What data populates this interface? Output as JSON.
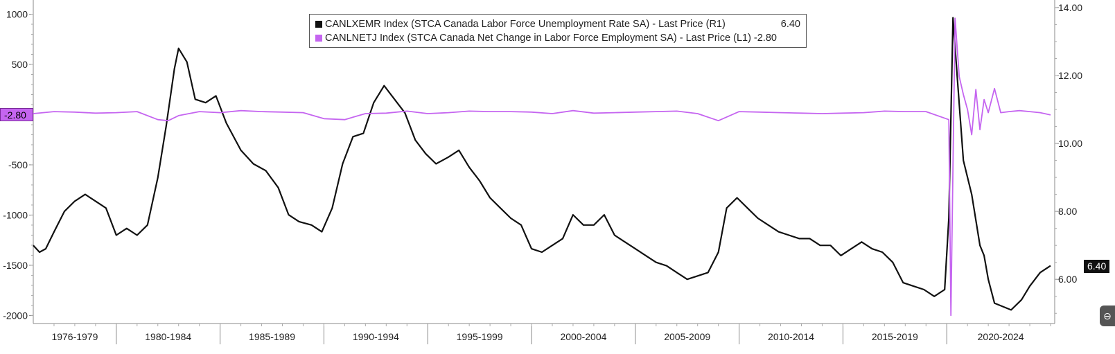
{
  "legend": {
    "unemployment": {
      "label": "CANLXEMR Index (STCA Canada Labor Force Unemployment Rate SA) - Last Price (R1)",
      "value": "6.40",
      "color": "#111111"
    },
    "employment": {
      "label": "CANLNETJ Index (STCA Canada Net Change in Labor Force Employment SA) - Last Price (L1)",
      "value": "-2.80",
      "color": "#c565f0"
    }
  },
  "tags": {
    "left": "-2.80",
    "right": "6.40"
  },
  "icons": {
    "corner": "collapse-icon"
  },
  "chart_data": {
    "type": "line",
    "grid": false,
    "legend_position": "top-center",
    "x_periods": [
      "1976-1979",
      "1980-1984",
      "1985-1989",
      "1990-1994",
      "1995-1999",
      "2000-2004",
      "2005-2009",
      "2010-2014",
      "2015-2019",
      "2020-2024"
    ],
    "x_range": [
      1976.0,
      2025.2
    ],
    "left_axis": {
      "ticks": [
        "1000",
        "500",
        "-500",
        "-1000",
        "-1500",
        "-2000"
      ],
      "tick_values": [
        1000,
        500,
        -500,
        -1000,
        -1500,
        -2000
      ],
      "range": [
        -2080,
        1100
      ]
    },
    "right_axis": {
      "ticks": [
        "14.00",
        "12.00",
        "10.00",
        "8.00",
        "6.00"
      ],
      "tick_values": [
        14,
        12,
        10,
        8,
        6
      ],
      "range": [
        4.7,
        14.1
      ]
    },
    "series": [
      {
        "name": "CANLXEMR Index (STCA Canada Labor Force Unemployment Rate SA) - Last Price (R1)",
        "axis": "right",
        "color": "#111111",
        "points": [
          [
            1976.0,
            7.0
          ],
          [
            1976.3,
            6.8
          ],
          [
            1976.6,
            6.9
          ],
          [
            1977.0,
            7.4
          ],
          [
            1977.5,
            8.0
          ],
          [
            1978.0,
            8.3
          ],
          [
            1978.5,
            8.5
          ],
          [
            1979.0,
            8.3
          ],
          [
            1979.5,
            8.1
          ],
          [
            1980.0,
            7.3
          ],
          [
            1980.5,
            7.5
          ],
          [
            1981.0,
            7.3
          ],
          [
            1981.5,
            7.6
          ],
          [
            1982.0,
            9.0
          ],
          [
            1982.4,
            10.5
          ],
          [
            1982.8,
            12.2
          ],
          [
            1983.0,
            12.8
          ],
          [
            1983.4,
            12.4
          ],
          [
            1983.8,
            11.3
          ],
          [
            1984.3,
            11.2
          ],
          [
            1984.8,
            11.4
          ],
          [
            1985.3,
            10.6
          ],
          [
            1986.0,
            9.8
          ],
          [
            1986.6,
            9.4
          ],
          [
            1987.2,
            9.2
          ],
          [
            1987.8,
            8.7
          ],
          [
            1988.3,
            7.9
          ],
          [
            1988.8,
            7.7
          ],
          [
            1989.4,
            7.6
          ],
          [
            1989.9,
            7.4
          ],
          [
            1990.4,
            8.1
          ],
          [
            1990.9,
            9.4
          ],
          [
            1991.4,
            10.2
          ],
          [
            1991.9,
            10.3
          ],
          [
            1992.4,
            11.2
          ],
          [
            1992.9,
            11.7
          ],
          [
            1993.4,
            11.3
          ],
          [
            1993.9,
            10.9
          ],
          [
            1994.4,
            10.1
          ],
          [
            1994.9,
            9.7
          ],
          [
            1995.4,
            9.4
          ],
          [
            1996.0,
            9.6
          ],
          [
            1996.5,
            9.8
          ],
          [
            1997.0,
            9.3
          ],
          [
            1997.5,
            8.9
          ],
          [
            1998.0,
            8.4
          ],
          [
            1998.5,
            8.1
          ],
          [
            1999.0,
            7.8
          ],
          [
            1999.5,
            7.6
          ],
          [
            2000.0,
            6.9
          ],
          [
            2000.5,
            6.8
          ],
          [
            2001.0,
            7.0
          ],
          [
            2001.5,
            7.2
          ],
          [
            2002.0,
            7.9
          ],
          [
            2002.5,
            7.6
          ],
          [
            2003.0,
            7.6
          ],
          [
            2003.5,
            7.9
          ],
          [
            2004.0,
            7.3
          ],
          [
            2004.5,
            7.1
          ],
          [
            2005.0,
            6.9
          ],
          [
            2005.5,
            6.7
          ],
          [
            2006.0,
            6.5
          ],
          [
            2006.5,
            6.4
          ],
          [
            2007.0,
            6.2
          ],
          [
            2007.5,
            6.0
          ],
          [
            2008.0,
            6.1
          ],
          [
            2008.5,
            6.2
          ],
          [
            2009.0,
            6.8
          ],
          [
            2009.4,
            8.1
          ],
          [
            2009.9,
            8.4
          ],
          [
            2010.4,
            8.1
          ],
          [
            2010.9,
            7.8
          ],
          [
            2011.4,
            7.6
          ],
          [
            2011.9,
            7.4
          ],
          [
            2012.4,
            7.3
          ],
          [
            2012.9,
            7.2
          ],
          [
            2013.4,
            7.2
          ],
          [
            2013.9,
            7.0
          ],
          [
            2014.4,
            7.0
          ],
          [
            2014.9,
            6.7
          ],
          [
            2015.4,
            6.9
          ],
          [
            2015.9,
            7.1
          ],
          [
            2016.4,
            6.9
          ],
          [
            2016.9,
            6.8
          ],
          [
            2017.4,
            6.5
          ],
          [
            2017.9,
            5.9
          ],
          [
            2018.4,
            5.8
          ],
          [
            2018.9,
            5.7
          ],
          [
            2019.4,
            5.5
          ],
          [
            2019.9,
            5.7
          ],
          [
            2020.1,
            7.8
          ],
          [
            2020.3,
            13.7
          ],
          [
            2020.5,
            12.0
          ],
          [
            2020.8,
            9.5
          ],
          [
            2021.2,
            8.5
          ],
          [
            2021.6,
            7.0
          ],
          [
            2021.8,
            6.7
          ],
          [
            2022.0,
            6.0
          ],
          [
            2022.3,
            5.3
          ],
          [
            2022.7,
            5.2
          ],
          [
            2023.1,
            5.1
          ],
          [
            2023.6,
            5.4
          ],
          [
            2024.0,
            5.8
          ],
          [
            2024.5,
            6.2
          ],
          [
            2025.0,
            6.4
          ]
        ]
      },
      {
        "name": "CANLNETJ Index (STCA Canada Net Change in Labor Force Employment SA) - Last Price (L1)",
        "axis": "left",
        "color": "#c565f0",
        "points": [
          [
            1976.0,
            10
          ],
          [
            1977.0,
            30
          ],
          [
            1978.0,
            25
          ],
          [
            1979.0,
            15
          ],
          [
            1980.0,
            20
          ],
          [
            1981.0,
            30
          ],
          [
            1982.0,
            -50
          ],
          [
            1982.5,
            -60
          ],
          [
            1983.0,
            -10
          ],
          [
            1984.0,
            30
          ],
          [
            1985.0,
            20
          ],
          [
            1986.0,
            40
          ],
          [
            1987.0,
            30
          ],
          [
            1988.0,
            25
          ],
          [
            1989.0,
            20
          ],
          [
            1990.0,
            -40
          ],
          [
            1991.0,
            -50
          ],
          [
            1992.0,
            10
          ],
          [
            1993.0,
            15
          ],
          [
            1994.0,
            35
          ],
          [
            1995.0,
            10
          ],
          [
            1996.0,
            20
          ],
          [
            1997.0,
            35
          ],
          [
            1998.0,
            30
          ],
          [
            1999.0,
            30
          ],
          [
            2000.0,
            25
          ],
          [
            2001.0,
            10
          ],
          [
            2002.0,
            40
          ],
          [
            2003.0,
            15
          ],
          [
            2004.0,
            20
          ],
          [
            2005.0,
            25
          ],
          [
            2006.0,
            30
          ],
          [
            2007.0,
            35
          ],
          [
            2008.0,
            10
          ],
          [
            2009.0,
            -60
          ],
          [
            2010.0,
            30
          ],
          [
            2011.0,
            25
          ],
          [
            2012.0,
            20
          ],
          [
            2013.0,
            15
          ],
          [
            2014.0,
            10
          ],
          [
            2015.0,
            15
          ],
          [
            2016.0,
            20
          ],
          [
            2017.0,
            35
          ],
          [
            2018.0,
            30
          ],
          [
            2019.0,
            30
          ],
          [
            2020.1,
            -50
          ],
          [
            2020.2,
            -2000
          ],
          [
            2020.4,
            960
          ],
          [
            2020.6,
            380
          ],
          [
            2020.8,
            200
          ],
          [
            2021.0,
            50
          ],
          [
            2021.2,
            -200
          ],
          [
            2021.4,
            250
          ],
          [
            2021.6,
            -150
          ],
          [
            2021.8,
            150
          ],
          [
            2022.0,
            20
          ],
          [
            2022.3,
            260
          ],
          [
            2022.6,
            20
          ],
          [
            2023.0,
            30
          ],
          [
            2023.5,
            40
          ],
          [
            2024.0,
            30
          ],
          [
            2024.5,
            20
          ],
          [
            2025.0,
            -2.8
          ]
        ]
      }
    ]
  }
}
